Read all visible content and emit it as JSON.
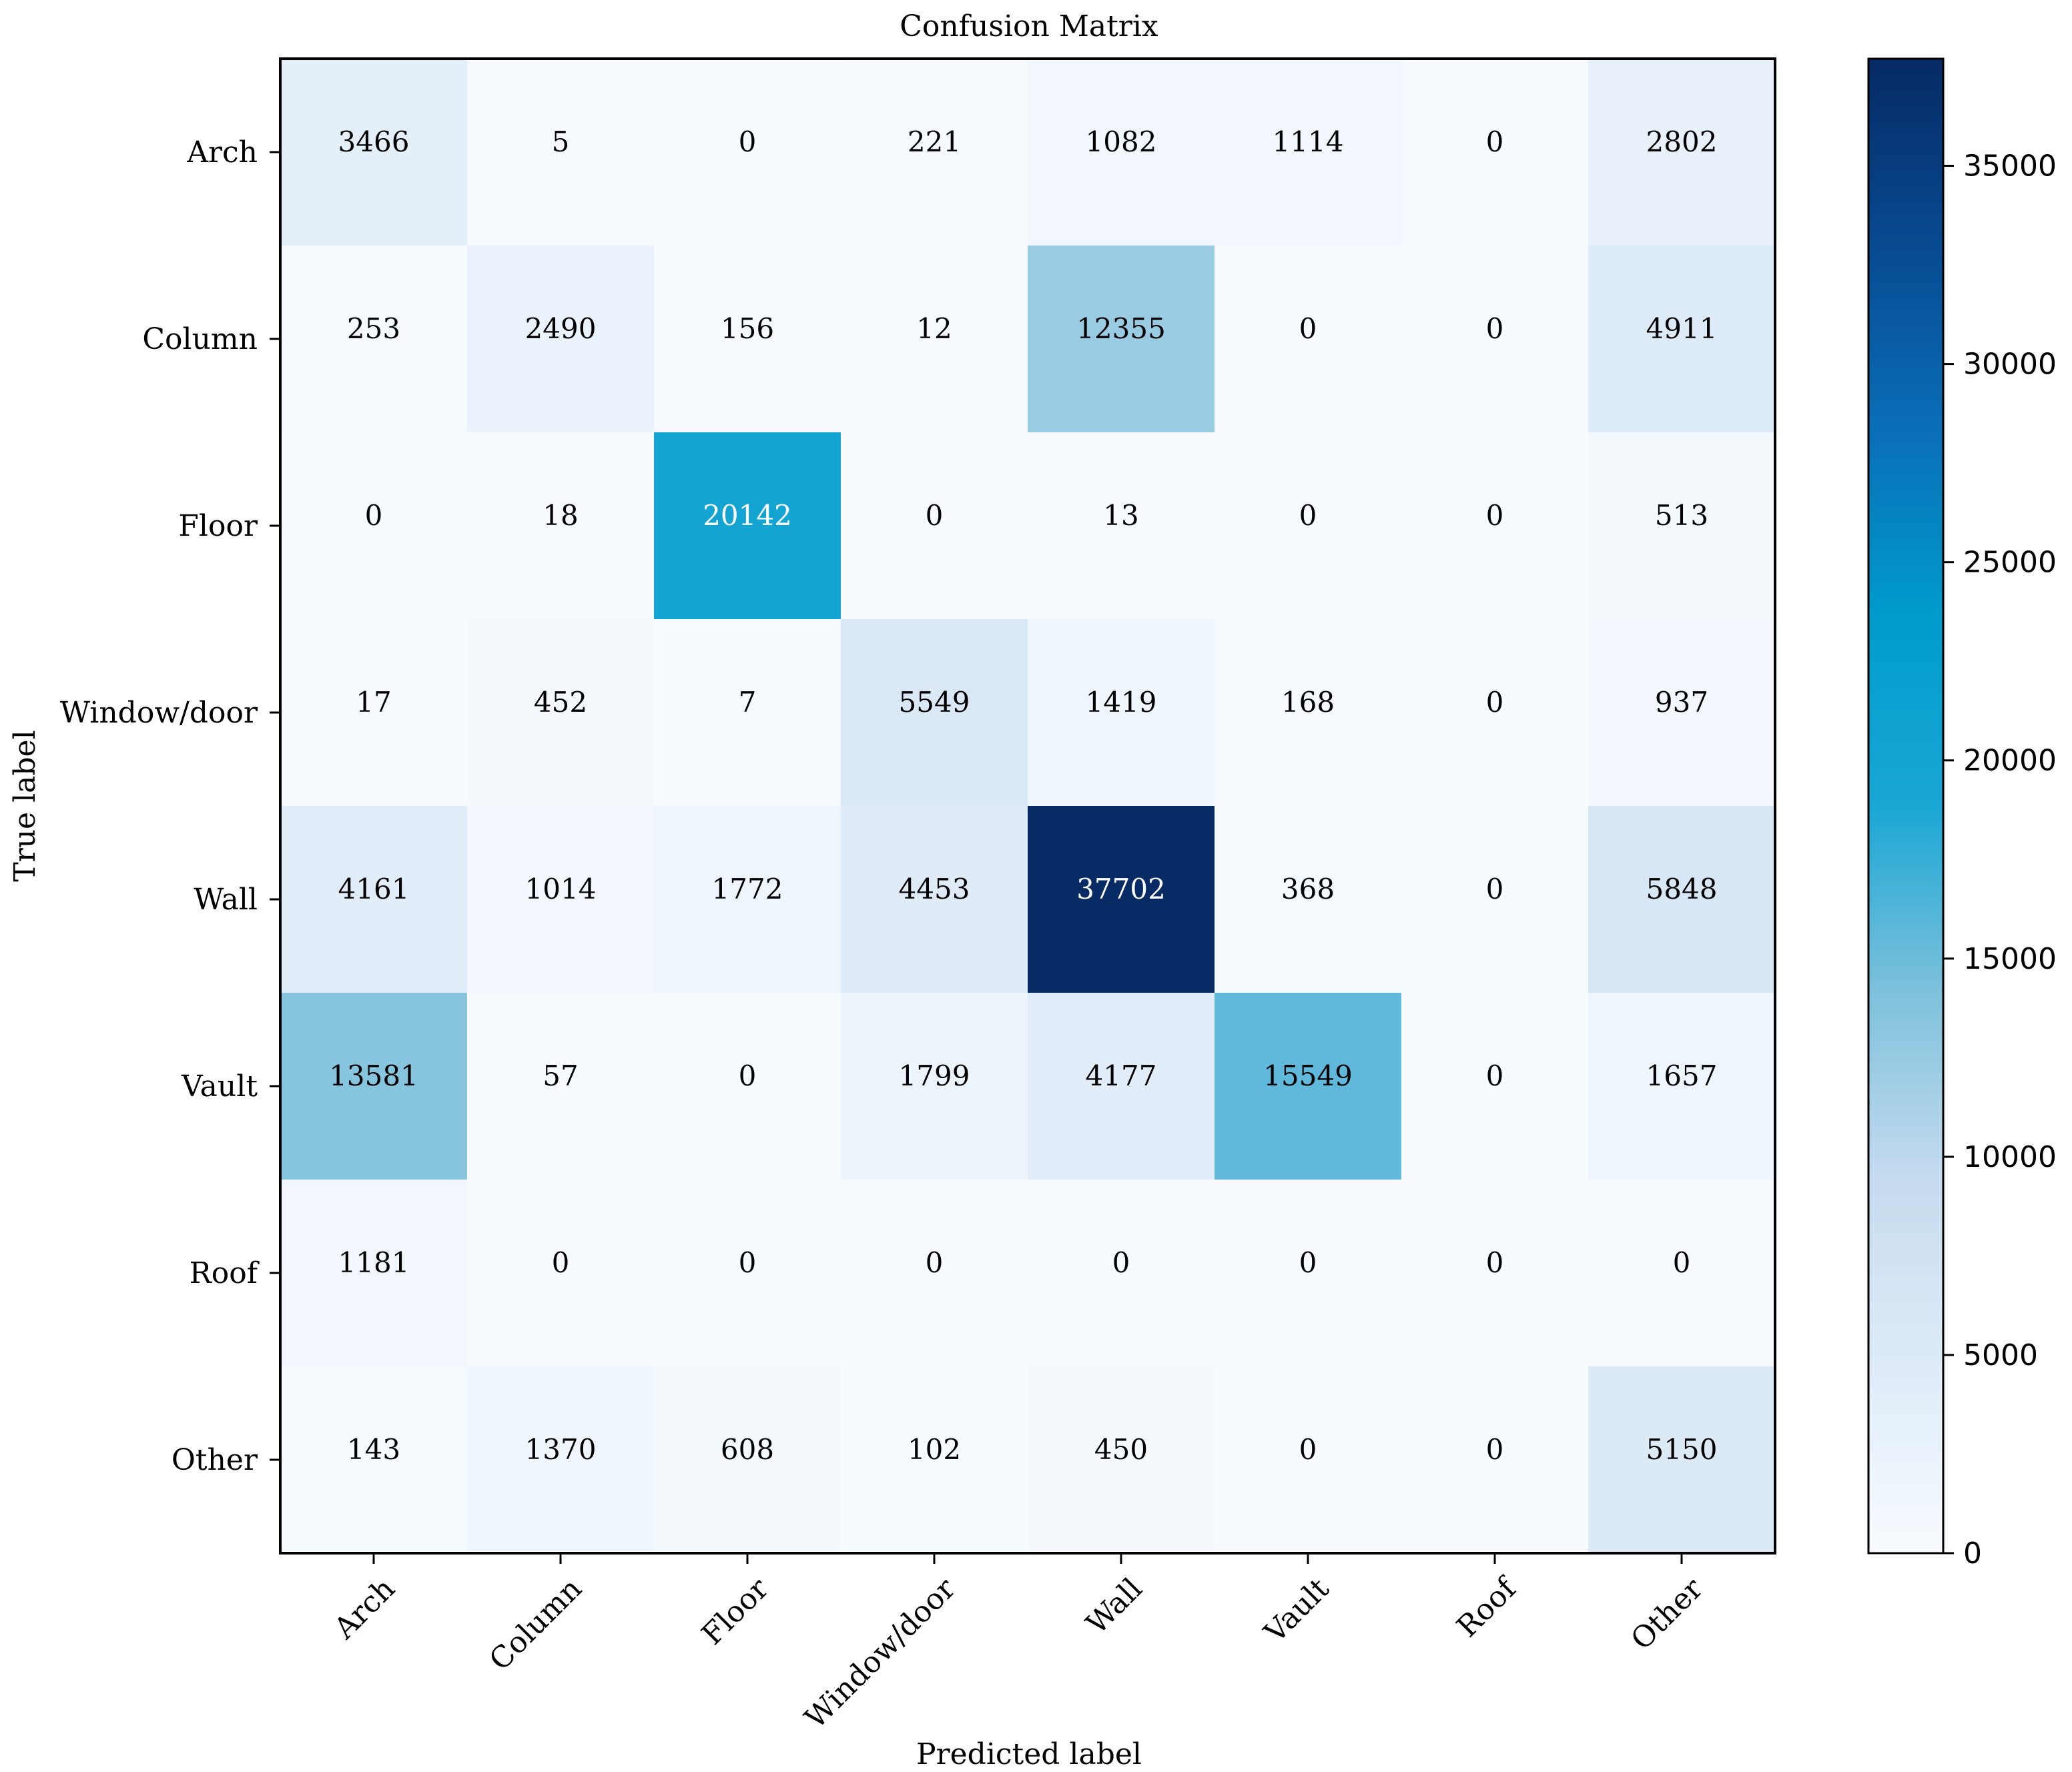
{
  "chart_data": {
    "type": "heatmap",
    "title": "Confusion Matrix",
    "xlabel": "Predicted label",
    "ylabel": "True label",
    "x_categories": [
      "Arch",
      "Column",
      "Floor",
      "Window/door",
      "Wall",
      "Vault",
      "Roof",
      "Other"
    ],
    "y_categories": [
      "Arch",
      "Column",
      "Floor",
      "Window/door",
      "Wall",
      "Vault",
      "Roof",
      "Other"
    ],
    "values": [
      [
        3466,
        5,
        0,
        221,
        1082,
        1114,
        0,
        2802
      ],
      [
        253,
        2490,
        156,
        12,
        12355,
        0,
        0,
        4911
      ],
      [
        0,
        18,
        20142,
        0,
        13,
        0,
        0,
        513
      ],
      [
        17,
        452,
        7,
        5549,
        1419,
        168,
        0,
        937
      ],
      [
        4161,
        1014,
        1772,
        4453,
        37702,
        368,
        0,
        5848
      ],
      [
        13581,
        57,
        0,
        1799,
        4177,
        15549,
        0,
        1657
      ],
      [
        1181,
        0,
        0,
        0,
        0,
        0,
        0,
        0
      ],
      [
        143,
        1370,
        608,
        102,
        450,
        0,
        0,
        5150
      ]
    ],
    "colormap": "Blues",
    "colorbar": {
      "min": 0,
      "max": 37702,
      "ticks": [
        0,
        5000,
        10000,
        15000,
        20000,
        25000,
        30000,
        35000
      ],
      "tick_labels": [
        "0",
        "5000",
        "10000",
        "15000",
        "20000",
        "25000",
        "30000",
        "35000"
      ]
    },
    "text_color_dark": "#000000",
    "text_color_light": "#ffffff"
  }
}
